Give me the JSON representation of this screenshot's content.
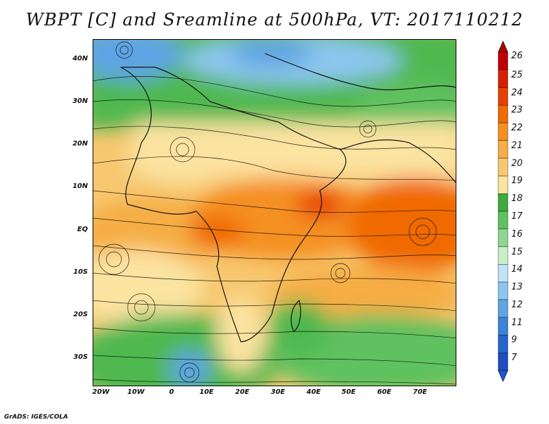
{
  "title": "WBPT [C] and Sreamline at 500hPa, VT: 2017110212",
  "footer": "GrADS: IGES/COLA",
  "lat_labels": [
    "40N",
    "30N",
    "20N",
    "10N",
    "EQ",
    "10S",
    "20S",
    "30S"
  ],
  "lon_labels": [
    "20W",
    "10W",
    "0",
    "10E",
    "20E",
    "30E",
    "40E",
    "50E",
    "60E",
    "70E"
  ],
  "colorbar": {
    "labels": [
      "26",
      "25",
      "24",
      "23",
      "22",
      "21",
      "20",
      "19",
      "18",
      "17",
      "16",
      "15",
      "14",
      "13",
      "12",
      "11",
      "9",
      "7"
    ],
    "colors": [
      "#c00000",
      "#d62000",
      "#e84000",
      "#f06a00",
      "#f59020",
      "#f6ad45",
      "#f7c870",
      "#fbe3a0",
      "#3dab3d",
      "#5fc15f",
      "#8fd68f",
      "#c9efc9",
      "#bfe4f7",
      "#8cc6ee",
      "#5fa4e3",
      "#3b84d9",
      "#2566cc",
      "#1f4fbf"
    ]
  },
  "legend_colors": {
    "max_arrow": "#b00000",
    "min_arrow": "#1f55d6"
  }
}
